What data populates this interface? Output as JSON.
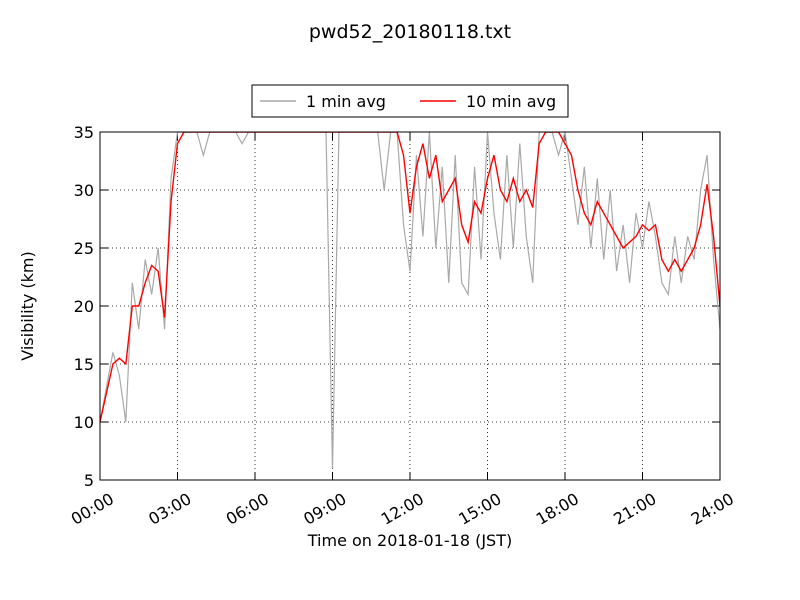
{
  "chart_data": {
    "type": "line",
    "title": "pwd52_20180118.txt",
    "xlabel": "Time on 2018-01-18 (JST)",
    "ylabel": "Visibility (km)",
    "x": [
      0,
      0.25,
      0.5,
      0.75,
      1,
      1.25,
      1.5,
      1.75,
      2,
      2.25,
      2.5,
      2.75,
      3,
      3.25,
      3.5,
      3.75,
      4,
      4.25,
      4.5,
      4.75,
      5,
      5.25,
      5.5,
      5.75,
      6,
      6.25,
      6.5,
      6.75,
      7,
      7.25,
      7.5,
      7.75,
      8,
      8.25,
      8.5,
      8.75,
      9,
      9.25,
      9.5,
      9.75,
      10,
      10.25,
      10.5,
      10.75,
      11,
      11.25,
      11.5,
      11.75,
      12,
      12.25,
      12.5,
      12.75,
      13,
      13.25,
      13.5,
      13.75,
      14,
      14.25,
      14.5,
      14.75,
      15,
      15.25,
      15.5,
      15.75,
      16,
      16.25,
      16.5,
      16.75,
      17,
      17.25,
      17.5,
      17.75,
      18,
      18.25,
      18.5,
      18.75,
      19,
      19.25,
      19.5,
      19.75,
      20,
      20.25,
      20.5,
      20.75,
      21,
      21.25,
      21.5,
      21.75,
      22,
      22.25,
      22.5,
      22.75,
      23,
      23.25,
      23.5,
      23.75,
      24
    ],
    "series": [
      {
        "name": "1 min avg",
        "color": "#a9a9a9",
        "values": [
          10,
          13,
          16,
          14,
          10,
          22,
          18,
          24,
          21,
          25,
          18,
          31,
          35,
          35,
          35,
          35,
          33,
          35,
          35,
          35,
          35,
          35,
          34,
          35,
          35,
          35,
          35,
          35,
          35,
          35,
          35,
          35,
          35,
          35,
          35,
          35,
          6,
          35,
          35,
          35,
          35,
          35,
          35,
          35,
          30,
          35,
          35,
          27,
          23,
          33,
          26,
          35,
          25,
          32,
          22,
          33,
          22,
          21,
          32,
          24,
          35,
          28,
          24,
          33,
          25,
          34,
          26,
          22,
          35,
          35,
          35,
          33,
          35,
          31,
          27,
          32,
          25,
          31,
          24,
          30,
          23,
          27,
          22,
          28,
          25,
          29,
          26,
          22,
          21,
          26,
          22,
          26,
          24,
          30,
          33,
          24,
          18
        ]
      },
      {
        "name": "10 min avg",
        "color": "#ff0000",
        "values": [
          10,
          12.5,
          15,
          15.5,
          15,
          20,
          20,
          22,
          23.5,
          23,
          19,
          29,
          34,
          35,
          35,
          35,
          35,
          35,
          35,
          35,
          35,
          35,
          35,
          35,
          35,
          35,
          35,
          35,
          35,
          35,
          35,
          35,
          35,
          35,
          35,
          35,
          35,
          35,
          35,
          35,
          35,
          35,
          35,
          35,
          35,
          35,
          35,
          33,
          28,
          32,
          34,
          31,
          33,
          29,
          30,
          31,
          27,
          25.5,
          29,
          28,
          31,
          33,
          30,
          29,
          31,
          29,
          30,
          28.5,
          34,
          35,
          35,
          35,
          34,
          33,
          30,
          28,
          27,
          29,
          28,
          27,
          26,
          25,
          25.5,
          26,
          27,
          26.5,
          27,
          24,
          23,
          24,
          23,
          24,
          25,
          27,
          30.5,
          26,
          20
        ]
      }
    ],
    "xlim": [
      0,
      24
    ],
    "xticks": [
      {
        "value": 0,
        "label": "00:00"
      },
      {
        "value": 3,
        "label": "03:00"
      },
      {
        "value": 6,
        "label": "06:00"
      },
      {
        "value": 9,
        "label": "09:00"
      },
      {
        "value": 12,
        "label": "12:00"
      },
      {
        "value": 15,
        "label": "15:00"
      },
      {
        "value": 18,
        "label": "18:00"
      },
      {
        "value": 21,
        "label": "21:00"
      },
      {
        "value": 24,
        "label": "24:00"
      }
    ],
    "ylim": [
      5,
      35
    ],
    "yticks": [
      5,
      10,
      15,
      20,
      25,
      30,
      35
    ],
    "grid": true,
    "legend": "top"
  }
}
